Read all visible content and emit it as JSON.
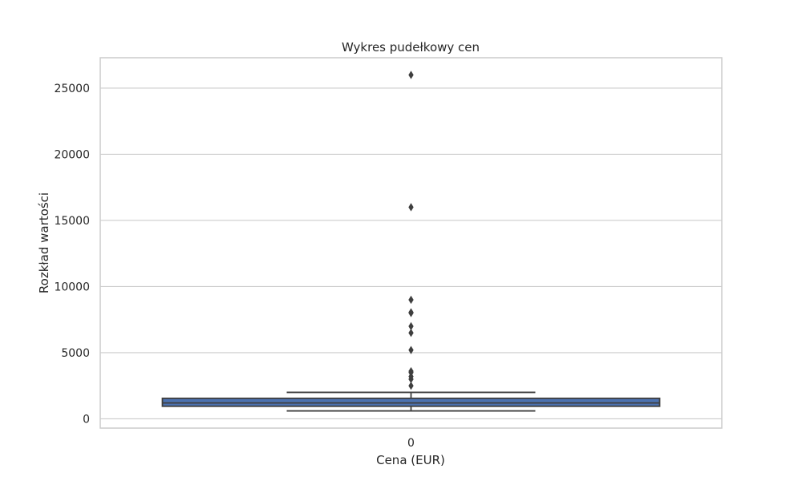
{
  "chart_data": {
    "type": "box",
    "title": "Wykres pudełkowy cen",
    "xlabel": "Cena (EUR)",
    "ylabel": "Rozkład wartości",
    "categories": [
      "0"
    ],
    "ylim": [
      -700,
      27300
    ],
    "yticks": [
      0,
      5000,
      10000,
      15000,
      20000,
      25000
    ],
    "grid": true,
    "colors": {
      "box_fill": "#4c72b0",
      "lines": "#3f3f3f",
      "grid": "#cccccc",
      "frame": "#cccccc",
      "text": "#262626"
    },
    "boxes": [
      {
        "category": "0",
        "whisker_low": 600,
        "q1": 950,
        "median": 1200,
        "q3": 1550,
        "whisker_high": 2000,
        "outliers": [
          2500,
          3000,
          3200,
          3500,
          3600,
          5200,
          6500,
          7000,
          8000,
          8050,
          9000,
          16000,
          26000
        ]
      }
    ]
  }
}
